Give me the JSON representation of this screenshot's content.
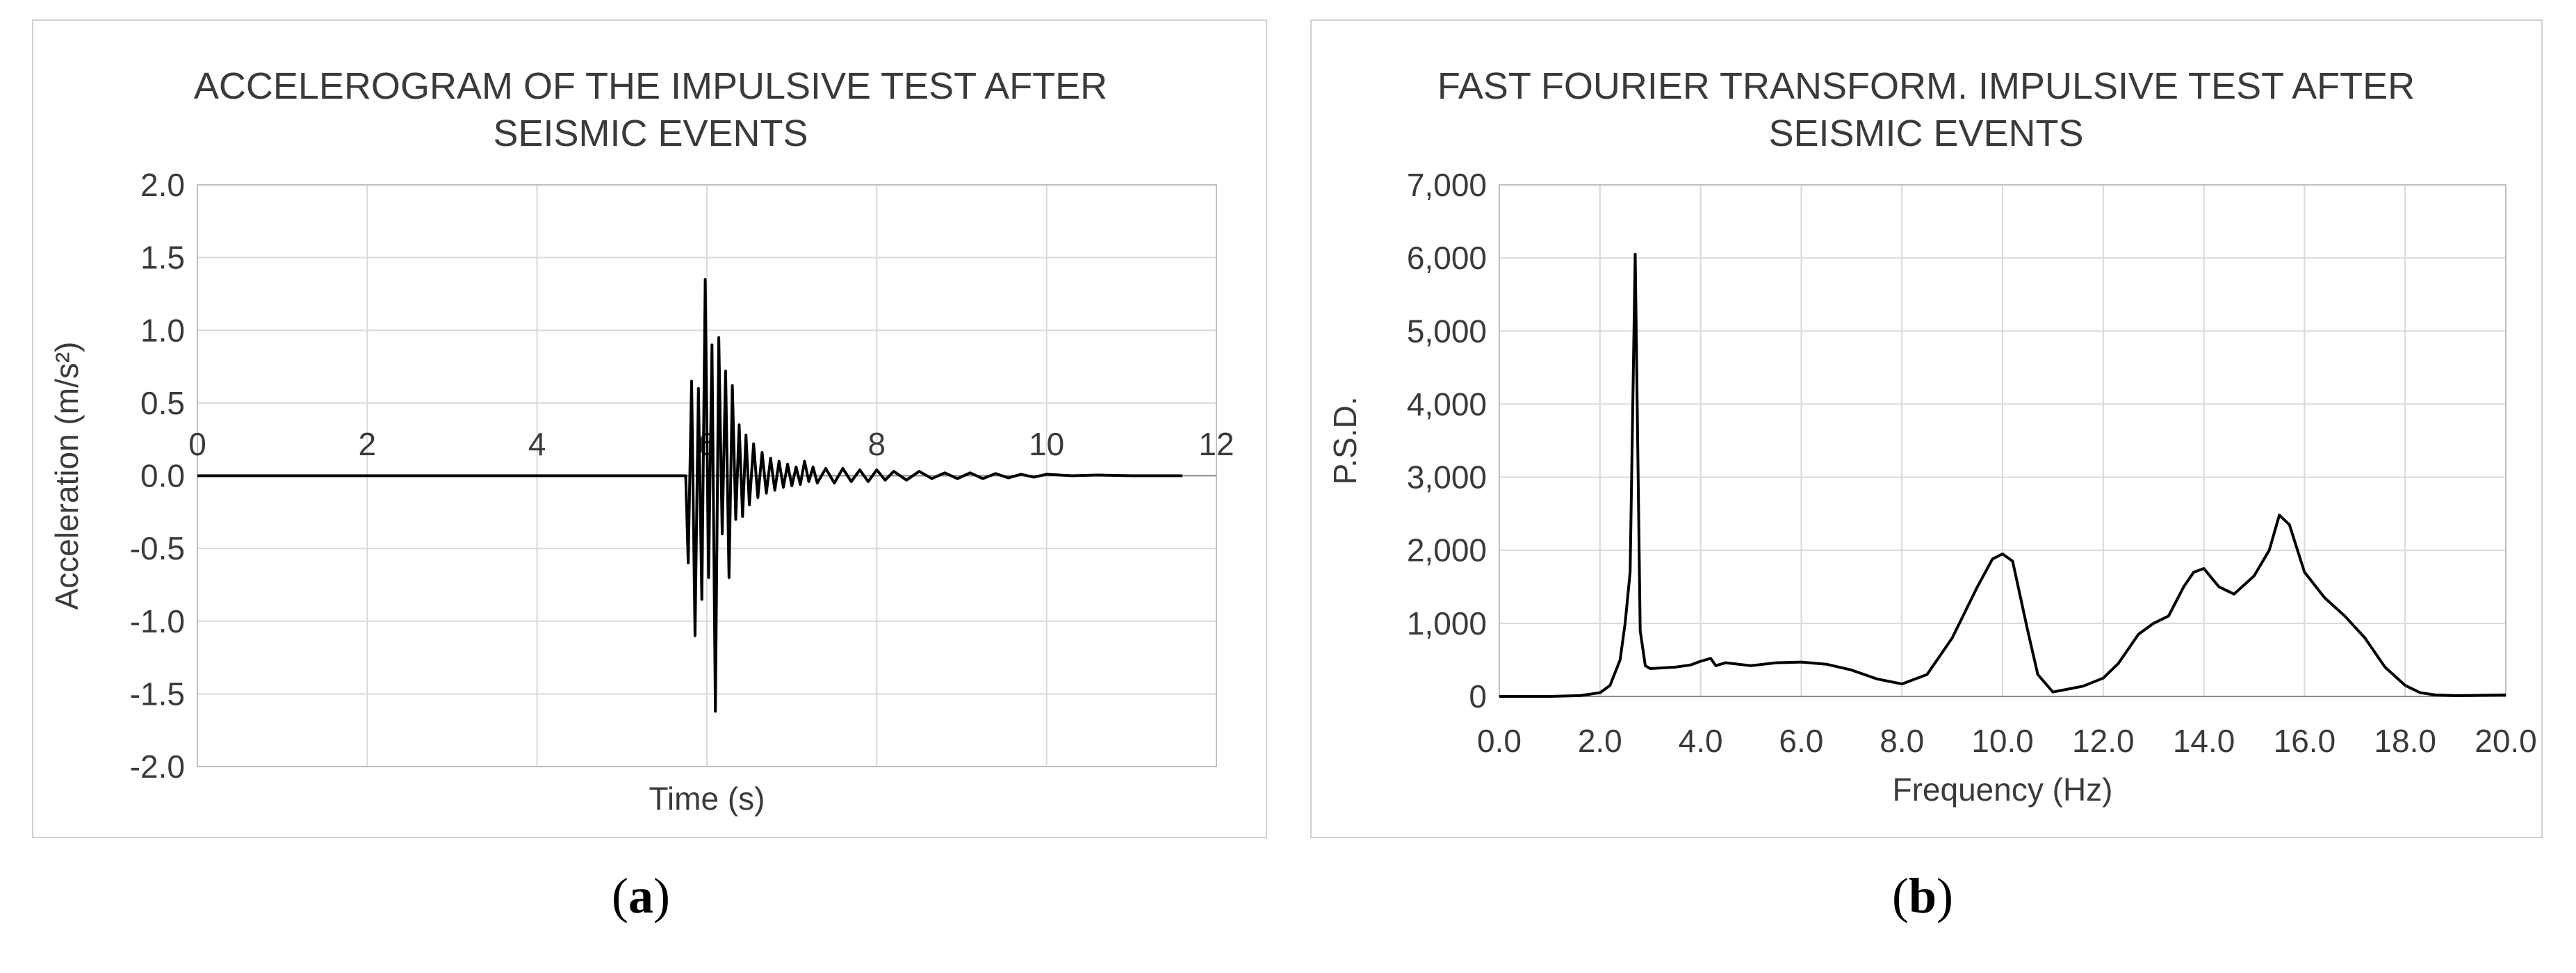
{
  "chart_data": [
    {
      "type": "line",
      "title_lines": [
        "ACCELEROGRAM OF THE IMPULSIVE TEST AFTER",
        "SEISMIC EVENTS"
      ],
      "xlabel": "Time (s)",
      "ylabel": "Acceleration (m/s²)",
      "xlim": [
        0,
        12
      ],
      "ylim": [
        -2.0,
        2.0
      ],
      "x_ticks": [
        "0",
        "2",
        "4",
        "6",
        "8",
        "10",
        "12"
      ],
      "y_ticks": [
        "2.0",
        "1.5",
        "1.0",
        "0.5",
        "0.0",
        "-0.5",
        "-1.0",
        "-1.5",
        "-2.0"
      ],
      "grid": true,
      "series": [
        {
          "x": [
            0,
            5.75,
            5.78,
            5.82,
            5.86,
            5.9,
            5.94,
            5.98,
            6.02,
            6.06,
            6.1,
            6.14,
            6.18,
            6.22,
            6.26,
            6.3,
            6.34,
            6.38,
            6.42,
            6.46,
            6.5,
            6.55,
            6.6,
            6.65,
            6.7,
            6.75,
            6.8,
            6.85,
            6.9,
            6.95,
            7.0,
            7.05,
            7.1,
            7.15,
            7.2,
            7.25,
            7.3,
            7.4,
            7.5,
            7.6,
            7.7,
            7.8,
            7.9,
            8.0,
            8.1,
            8.2,
            8.35,
            8.5,
            8.65,
            8.8,
            8.95,
            9.1,
            9.25,
            9.4,
            9.55,
            9.7,
            9.85,
            10.0,
            10.3,
            10.6,
            11.0,
            11.6
          ],
          "y": [
            0.0,
            0.0,
            -0.6,
            0.65,
            -1.1,
            0.6,
            -0.85,
            1.35,
            -0.7,
            0.9,
            -1.62,
            0.95,
            -0.4,
            0.72,
            -0.7,
            0.62,
            -0.3,
            0.35,
            -0.28,
            0.28,
            -0.2,
            0.22,
            -0.15,
            0.16,
            -0.12,
            0.12,
            -0.1,
            0.1,
            -0.08,
            0.08,
            -0.07,
            0.06,
            -0.06,
            0.1,
            -0.04,
            0.06,
            -0.05,
            0.05,
            -0.05,
            0.05,
            -0.04,
            0.04,
            -0.04,
            0.04,
            -0.03,
            0.03,
            -0.03,
            0.03,
            -0.02,
            0.02,
            -0.02,
            0.02,
            -0.02,
            0.015,
            -0.015,
            0.01,
            -0.01,
            0.01,
            0.0,
            0.005,
            0.0,
            0.0
          ]
        }
      ]
    },
    {
      "type": "line",
      "title_lines": [
        "FAST FOURIER TRANSFORM. IMPULSIVE TEST AFTER",
        "SEISMIC EVENTS"
      ],
      "xlabel": "Frequency (Hz)",
      "ylabel": "P.S.D.",
      "xlim": [
        0,
        20
      ],
      "ylim": [
        0,
        7000
      ],
      "x_ticks": [
        "0.0",
        "2.0",
        "4.0",
        "6.0",
        "8.0",
        "10.0",
        "12.0",
        "14.0",
        "16.0",
        "18.0",
        "20.0"
      ],
      "y_ticks": [
        "7,000",
        "6,000",
        "5,000",
        "4,000",
        "3,000",
        "2,000",
        "1,000",
        "0"
      ],
      "grid": true,
      "series": [
        {
          "x": [
            0,
            1.0,
            1.6,
            2.0,
            2.2,
            2.4,
            2.5,
            2.6,
            2.7,
            2.8,
            2.9,
            3.0,
            3.5,
            3.8,
            4.0,
            4.2,
            4.3,
            4.5,
            5.0,
            5.5,
            6.0,
            6.5,
            7.0,
            7.5,
            8.0,
            8.5,
            9.0,
            9.5,
            9.8,
            10.0,
            10.2,
            10.5,
            10.7,
            11.0,
            11.3,
            11.6,
            12.0,
            12.3,
            12.7,
            13.0,
            13.3,
            13.6,
            13.8,
            14.0,
            14.3,
            14.6,
            15.0,
            15.3,
            15.5,
            15.7,
            16.0,
            16.4,
            16.8,
            17.2,
            17.6,
            18.0,
            18.3,
            18.6,
            19.0,
            19.5,
            20.0
          ],
          "y": [
            0,
            0,
            10,
            50,
            150,
            500,
            1000,
            1700,
            6050,
            900,
            420,
            380,
            400,
            430,
            480,
            520,
            420,
            460,
            420,
            460,
            470,
            440,
            360,
            240,
            170,
            300,
            800,
            1500,
            1880,
            1950,
            1850,
            900,
            300,
            60,
            100,
            140,
            250,
            450,
            850,
            1000,
            1100,
            1500,
            1700,
            1750,
            1500,
            1400,
            1650,
            2000,
            2480,
            2350,
            1700,
            1350,
            1100,
            800,
            400,
            150,
            50,
            20,
            10,
            15,
            20
          ]
        }
      ]
    }
  ],
  "captions": {
    "a": "a",
    "b": "b"
  }
}
